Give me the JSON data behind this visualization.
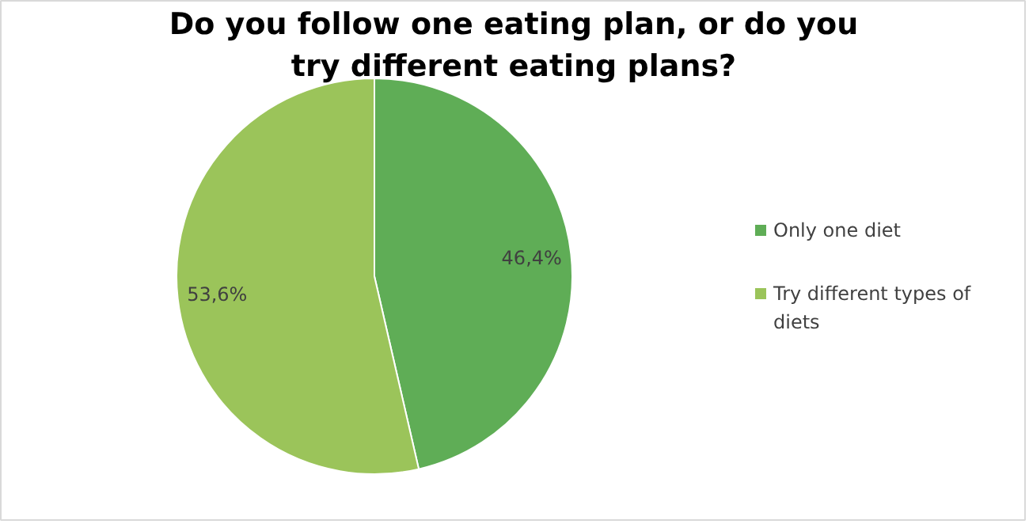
{
  "chart_data": {
    "type": "pie",
    "title": "Do you follow one eating plan, or do you try different eating plans?",
    "categories": [
      "Only one diet",
      "Try different types of diets"
    ],
    "values": [
      46.4,
      53.6
    ],
    "colors": [
      "#5fad56",
      "#9bc45a"
    ],
    "value_labels": [
      "46,4%",
      "53,6%"
    ],
    "legend": "right"
  }
}
